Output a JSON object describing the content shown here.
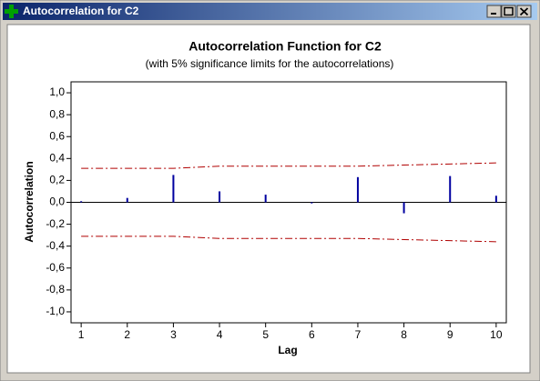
{
  "window": {
    "title": "Autocorrelation for C2"
  },
  "chart_data": {
    "type": "acf",
    "title": "Autocorrelation Function for C2",
    "subtitle": "(with 5% significance limits for the autocorrelations)",
    "x_label": "Lag",
    "y_label": "Autocorrelation",
    "x": [
      1,
      2,
      3,
      4,
      5,
      6,
      7,
      8,
      9,
      10
    ],
    "values": [
      0.01,
      0.04,
      0.25,
      0.1,
      0.07,
      -0.01,
      0.23,
      -0.1,
      0.24,
      0.06
    ],
    "color": "#0000a0",
    "limits": {
      "upper": [
        0.31,
        0.31,
        0.31,
        0.33,
        0.33,
        0.33,
        0.33,
        0.34,
        0.35,
        0.36
      ],
      "lower": [
        -0.31,
        -0.31,
        -0.31,
        -0.33,
        -0.33,
        -0.33,
        -0.33,
        -0.34,
        -0.35,
        -0.36
      ],
      "color": "#b00000"
    },
    "xlim": [
      0.78,
      10.22
    ],
    "ylim": [
      -1.1,
      1.1
    ],
    "xticks": [
      1,
      2,
      3,
      4,
      5,
      6,
      7,
      8,
      9,
      10
    ],
    "yticks": [
      {
        "value": 1,
        "label": "1,0"
      },
      {
        "value": 0.8,
        "label": "0,8"
      },
      {
        "value": 0.6,
        "label": "0,6"
      },
      {
        "value": 0.4,
        "label": "0,4"
      },
      {
        "value": 0.2,
        "label": "0,2"
      },
      {
        "value": 0,
        "label": "0,0"
      },
      {
        "value": -0.2,
        "label": "-0,2"
      },
      {
        "value": -0.4,
        "label": "-0,4"
      },
      {
        "value": -0.6,
        "label": "-0,6"
      },
      {
        "value": -0.8,
        "label": "-0,8"
      },
      {
        "value": -1,
        "label": "-1,0"
      }
    ]
  }
}
